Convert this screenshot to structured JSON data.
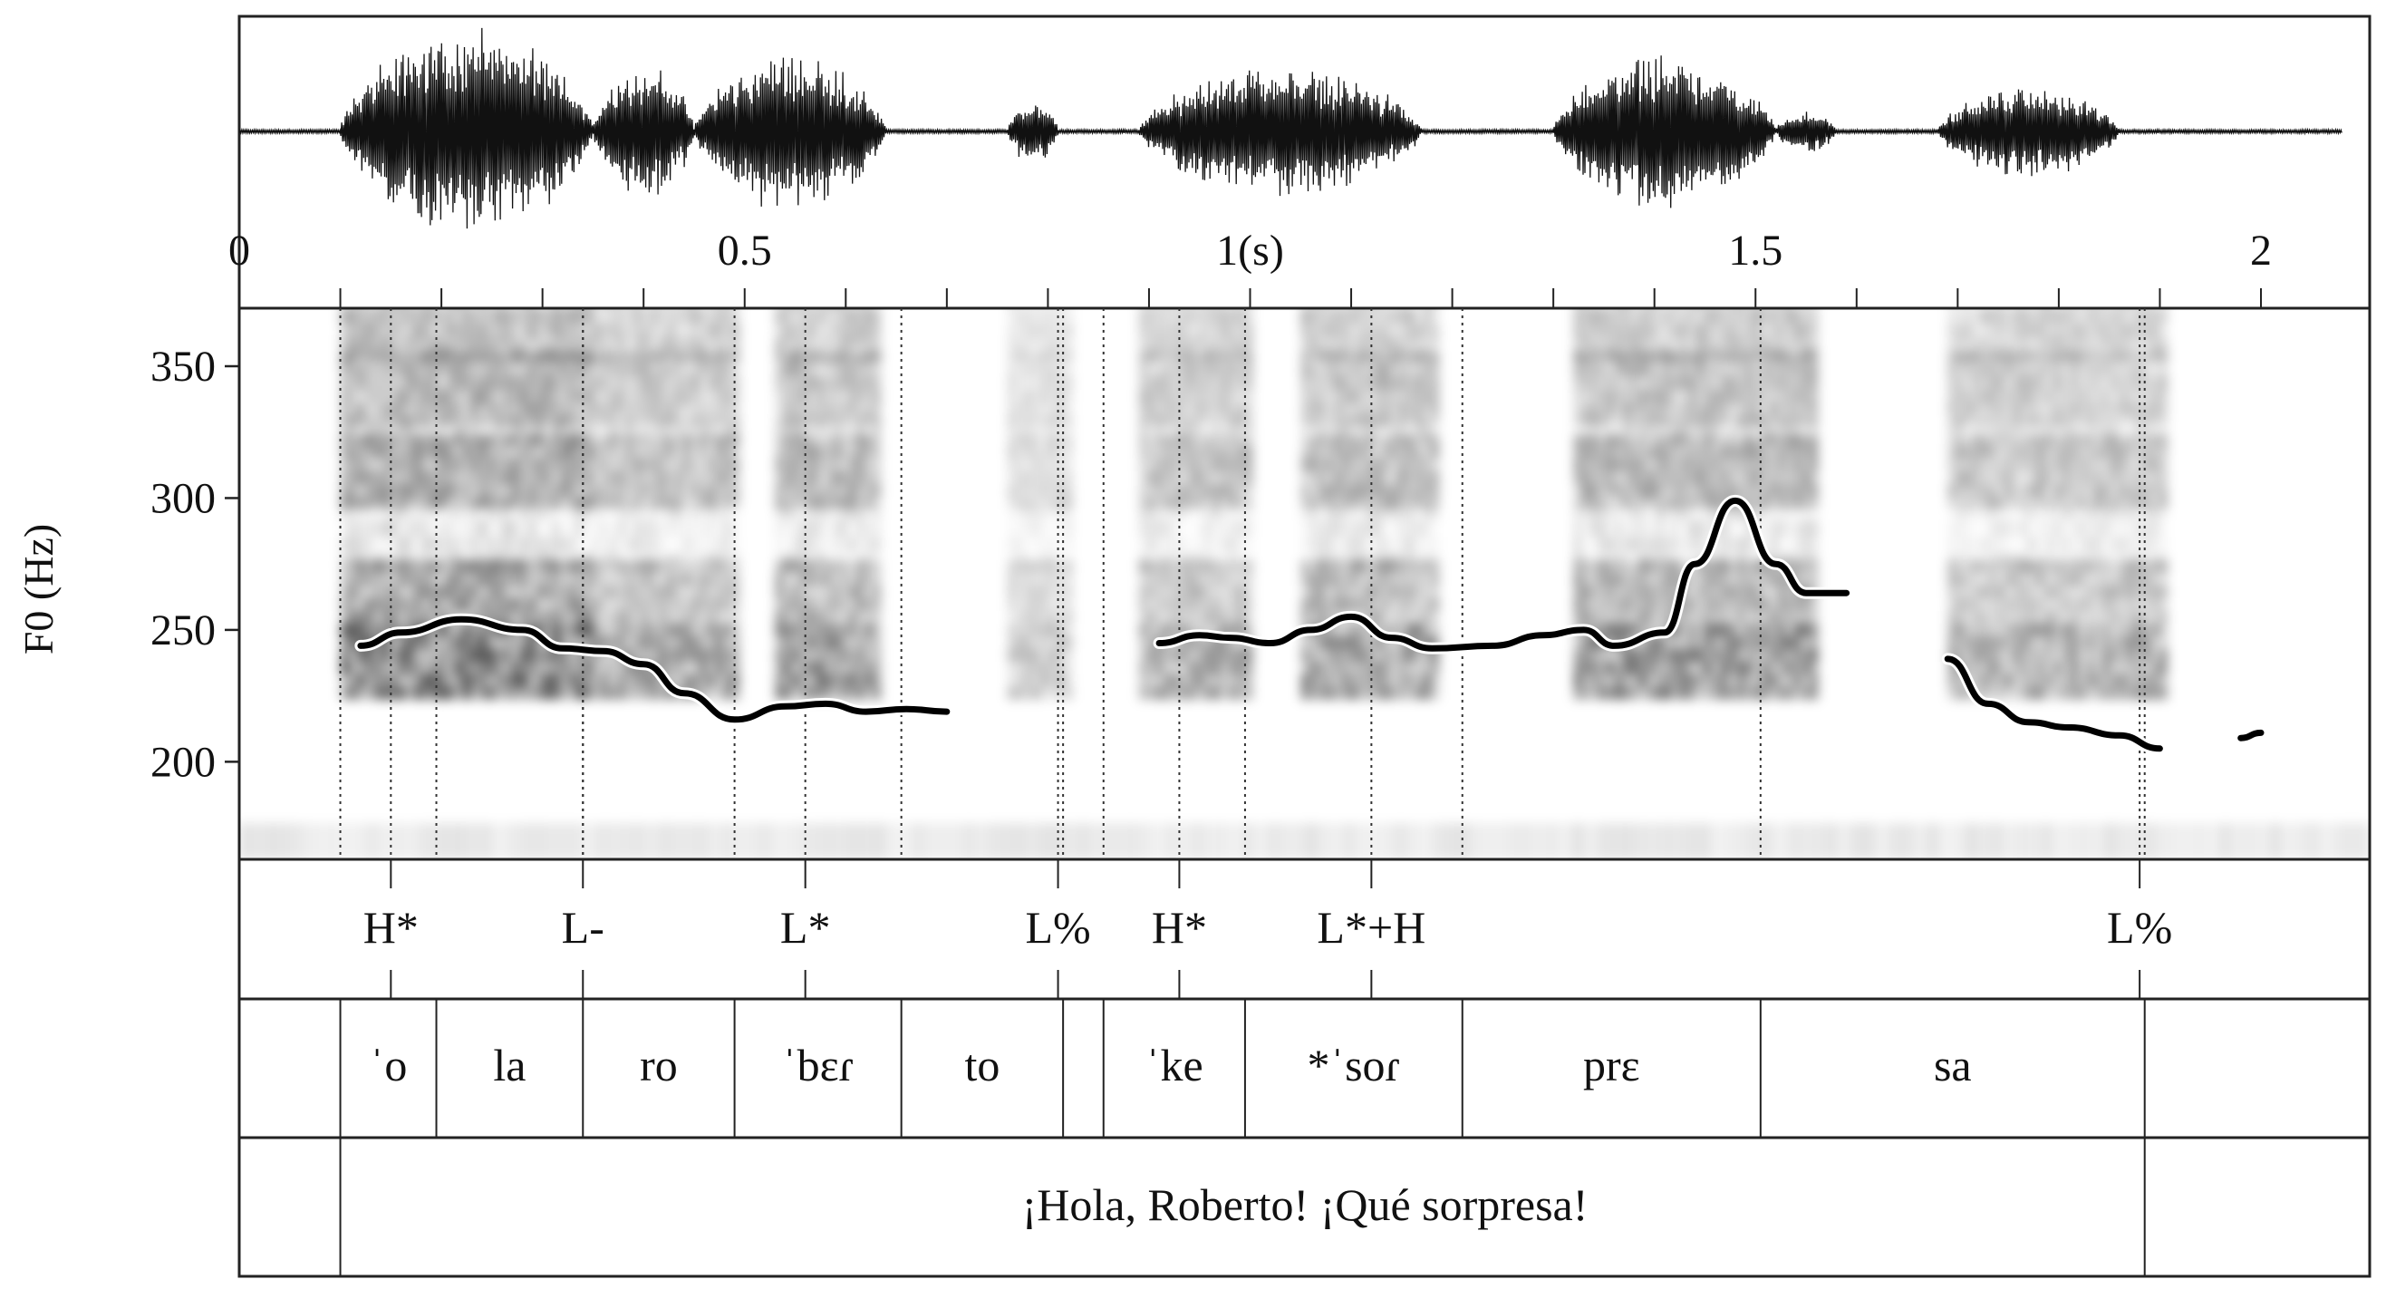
{
  "waveform": {
    "time_ticks": [
      "0",
      "0.5",
      "1(s)",
      "1.5",
      "2"
    ],
    "time_tick_values": [
      0,
      0.5,
      1,
      1.5,
      2
    ],
    "duration_s": 2.08,
    "segments": [
      {
        "start": 0.1,
        "end": 0.35,
        "amp": 0.95
      },
      {
        "start": 0.35,
        "end": 0.45,
        "amp": 0.65
      },
      {
        "start": 0.45,
        "end": 0.64,
        "amp": 0.72
      },
      {
        "start": 0.76,
        "end": 0.81,
        "amp": 0.3
      },
      {
        "start": 0.89,
        "end": 1.17,
        "amp": 0.6
      },
      {
        "start": 1.3,
        "end": 1.52,
        "amp": 0.7
      },
      {
        "start": 1.52,
        "end": 1.58,
        "amp": 0.2
      },
      {
        "start": 1.68,
        "end": 1.86,
        "amp": 0.42
      }
    ]
  },
  "chart_data": {
    "type": "line",
    "ylabel": "F0 (Hz)",
    "yticks": [
      200,
      250,
      300,
      350
    ],
    "ylim": [
      163,
      372
    ],
    "xlim": [
      0,
      2.08
    ],
    "series": [
      {
        "values": [
          [
            0.12,
            244
          ],
          [
            0.16,
            249
          ],
          [
            0.22,
            254
          ],
          [
            0.28,
            250
          ],
          [
            0.32,
            243
          ],
          [
            0.36,
            242
          ],
          [
            0.4,
            237
          ],
          [
            0.44,
            226
          ],
          [
            0.49,
            216
          ],
          [
            0.54,
            221
          ],
          [
            0.58,
            222
          ],
          [
            0.62,
            219
          ],
          [
            0.66,
            220
          ],
          [
            0.7,
            219
          ]
        ]
      },
      {
        "values": [
          [
            0.91,
            245
          ],
          [
            0.95,
            248
          ],
          [
            0.98,
            247
          ],
          [
            1.02,
            245
          ],
          [
            1.06,
            250
          ],
          [
            1.1,
            255
          ],
          [
            1.14,
            247
          ],
          [
            1.18,
            243
          ],
          [
            1.24,
            244
          ],
          [
            1.29,
            248
          ],
          [
            1.33,
            250
          ],
          [
            1.36,
            244
          ],
          [
            1.41,
            249
          ],
          [
            1.44,
            275
          ],
          [
            1.48,
            299
          ],
          [
            1.52,
            275
          ],
          [
            1.55,
            264
          ],
          [
            1.59,
            264
          ]
        ]
      },
      {
        "values": [
          [
            1.69,
            239
          ],
          [
            1.73,
            222
          ],
          [
            1.77,
            215
          ],
          [
            1.81,
            213
          ],
          [
            1.86,
            210
          ],
          [
            1.9,
            205
          ]
        ]
      },
      {
        "values": [
          [
            1.98,
            209
          ],
          [
            2.0,
            211
          ]
        ]
      }
    ]
  },
  "spectrogram": {
    "voiced_regions": [
      {
        "start": 0.1,
        "end": 0.35,
        "dark": 0.85
      },
      {
        "start": 0.35,
        "end": 0.49,
        "dark": 0.6
      },
      {
        "start": 0.53,
        "end": 0.63,
        "dark": 0.7
      },
      {
        "start": 0.76,
        "end": 0.82,
        "dark": 0.35
      },
      {
        "start": 0.89,
        "end": 1.0,
        "dark": 0.55
      },
      {
        "start": 1.05,
        "end": 1.18,
        "dark": 0.65
      },
      {
        "start": 1.32,
        "end": 1.56,
        "dark": 0.7
      },
      {
        "start": 1.69,
        "end": 1.9,
        "dark": 0.55
      }
    ]
  },
  "tiers": {
    "tones": [
      {
        "label": "H*",
        "t": 0.15
      },
      {
        "label": "L-",
        "t": 0.34
      },
      {
        "label": "L*",
        "t": 0.56
      },
      {
        "label": "L%",
        "t": 0.81
      },
      {
        "label": "H*",
        "t": 0.93
      },
      {
        "label": "L*+H",
        "t": 1.12
      },
      {
        "label": "L%",
        "t": 1.88
      }
    ],
    "syllable_boundaries": [
      0.1,
      0.195,
      0.34,
      0.49,
      0.655,
      0.815,
      0.855,
      0.995,
      1.21,
      1.505,
      1.885
    ],
    "syllables": [
      {
        "label": "ˈo",
        "start": 0.1,
        "end": 0.195
      },
      {
        "label": "la",
        "start": 0.195,
        "end": 0.34
      },
      {
        "label": "ro",
        "start": 0.34,
        "end": 0.49
      },
      {
        "label": "ˈbɛɾ",
        "start": 0.49,
        "end": 0.655
      },
      {
        "label": "to",
        "start": 0.655,
        "end": 0.815
      },
      {
        "label": "ˈke",
        "start": 0.855,
        "end": 0.995
      },
      {
        "label": "*ˈsoɾ",
        "start": 0.995,
        "end": 1.21
      },
      {
        "label": "prɛ",
        "start": 1.21,
        "end": 1.505
      },
      {
        "label": "sa",
        "start": 1.505,
        "end": 1.885
      }
    ],
    "sentence": {
      "label": "¡Hola, Roberto! ¡Qué sorpresa!",
      "start": 0.1,
      "end": 1.885
    }
  }
}
